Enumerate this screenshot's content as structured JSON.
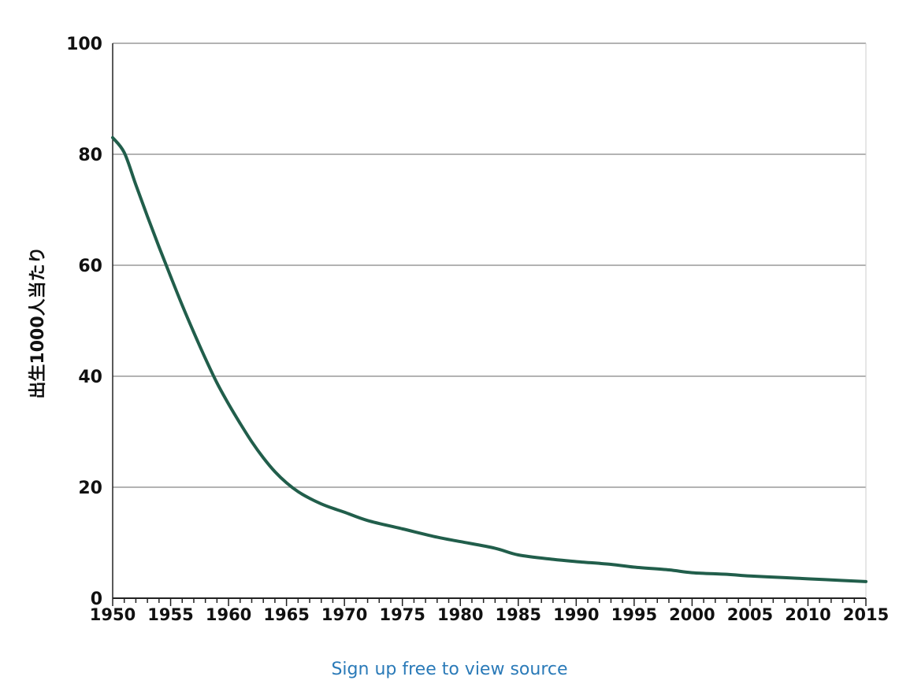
{
  "chart_data": {
    "type": "line",
    "title": "",
    "xlabel": "",
    "ylabel": "出生1000人当たり",
    "xlim": [
      1950,
      2015
    ],
    "ylim": [
      0,
      100
    ],
    "yticks": [
      0,
      20,
      40,
      60,
      80,
      100
    ],
    "xticks": [
      1950,
      1955,
      1960,
      1965,
      1970,
      1975,
      1980,
      1985,
      1990,
      1995,
      2000,
      2005,
      2010,
      2015
    ],
    "grid": "horizontal",
    "line_color": "#215e4b",
    "series": [
      {
        "x": [
          1950,
          1951,
          1952,
          1953,
          1954,
          1955,
          1956,
          1957,
          1958,
          1959,
          1960,
          1961,
          1962,
          1963,
          1964,
          1965,
          1966,
          1967,
          1968,
          1969,
          1970,
          1972,
          1975,
          1978,
          1980,
          1983,
          1985,
          1988,
          1990,
          1993,
          1995,
          1998,
          2000,
          2003,
          2005,
          2008,
          2010,
          2013,
          2015
        ],
        "values": [
          83,
          80.3,
          74.5,
          68.8,
          63.3,
          58,
          52.8,
          47.9,
          43.2,
          38.8,
          35,
          31.5,
          28.2,
          25.3,
          22.8,
          20.8,
          19.2,
          18,
          17,
          16.2,
          15.5,
          14,
          12.5,
          11,
          10.2,
          9,
          7.8,
          7,
          6.6,
          6.1,
          5.6,
          5.1,
          4.6,
          4.3,
          4,
          3.7,
          3.5,
          3.2,
          3
        ]
      }
    ]
  },
  "footer": {
    "source_link": "Sign up free to view source"
  }
}
